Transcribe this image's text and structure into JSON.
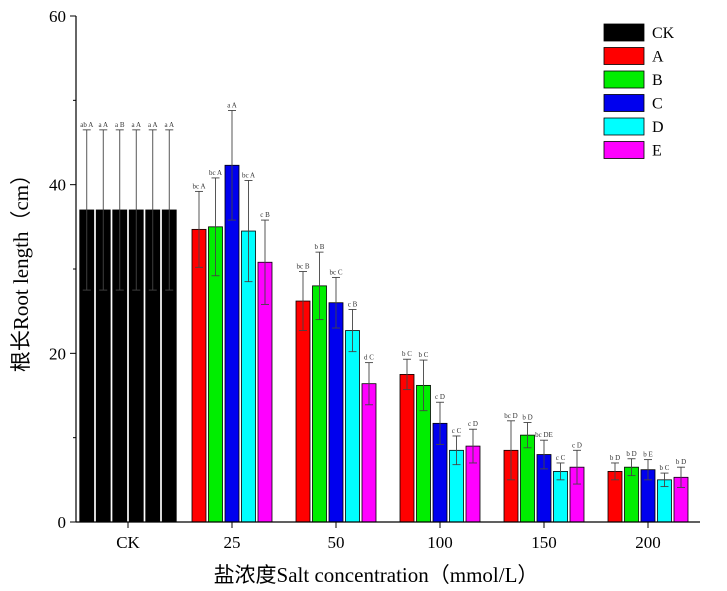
{
  "chart_data": {
    "type": "bar",
    "xlabel": "盐浓度Salt concentration（mmol/L）",
    "ylabel": "根长Root length（cm）",
    "ylim": [
      0,
      60
    ],
    "yticks": [
      0,
      20,
      40,
      60
    ],
    "legend_position": "top-right",
    "categories": [
      "CK",
      "25",
      "50",
      "100",
      "150",
      "200"
    ],
    "series": [
      {
        "name": "CK",
        "color": "#000000",
        "values": [
          37,
          null,
          null,
          null,
          null,
          null
        ],
        "errors": [
          9.5,
          null,
          null,
          null,
          null,
          null
        ],
        "labels": [
          "ab A",
          "",
          "",
          "",
          "",
          ""
        ]
      },
      {
        "name": "A",
        "color": "#ff0000",
        "values": [
          37,
          34.7,
          26.2,
          17.5,
          8.5,
          6
        ],
        "errors": [
          9.5,
          4.5,
          3.5,
          1.8,
          3.5,
          1.0
        ],
        "labels": [
          "a A",
          "bc A",
          "bc B",
          "b C",
          "bc D",
          "b D"
        ]
      },
      {
        "name": "B",
        "color": "#00ee00",
        "values": [
          37,
          35,
          28,
          16.2,
          10.3,
          6.5
        ],
        "errors": [
          9.5,
          5.8,
          4.0,
          3.0,
          1.5,
          1.0
        ],
        "labels": [
          "a B",
          "bc A",
          "b B",
          "b C",
          "b D",
          "b D"
        ]
      },
      {
        "name": "C",
        "color": "#0000ee",
        "values": [
          37,
          42.3,
          26,
          11.7,
          8,
          6.2
        ],
        "errors": [
          9.5,
          6.5,
          3.0,
          2.5,
          1.7,
          1.2
        ],
        "labels": [
          "a A",
          "a A",
          "bc C",
          "c D",
          "bc DE",
          "b E"
        ]
      },
      {
        "name": "D",
        "color": "#00ffff",
        "values": [
          37,
          34.5,
          22.7,
          8.5,
          6,
          5
        ],
        "errors": [
          9.5,
          6.0,
          2.5,
          1.7,
          1.0,
          0.8
        ],
        "labels": [
          "a A",
          "bc A",
          "c B",
          "c C",
          "c C",
          "b C"
        ]
      },
      {
        "name": "E",
        "color": "#ff00ff",
        "values": [
          37,
          30.8,
          16.4,
          9,
          6.5,
          5.3
        ],
        "errors": [
          9.5,
          5.0,
          2.5,
          2.0,
          2.0,
          1.2
        ],
        "labels": [
          "a A",
          "c B",
          "d C",
          "c D",
          "c D",
          "b D"
        ]
      }
    ]
  }
}
